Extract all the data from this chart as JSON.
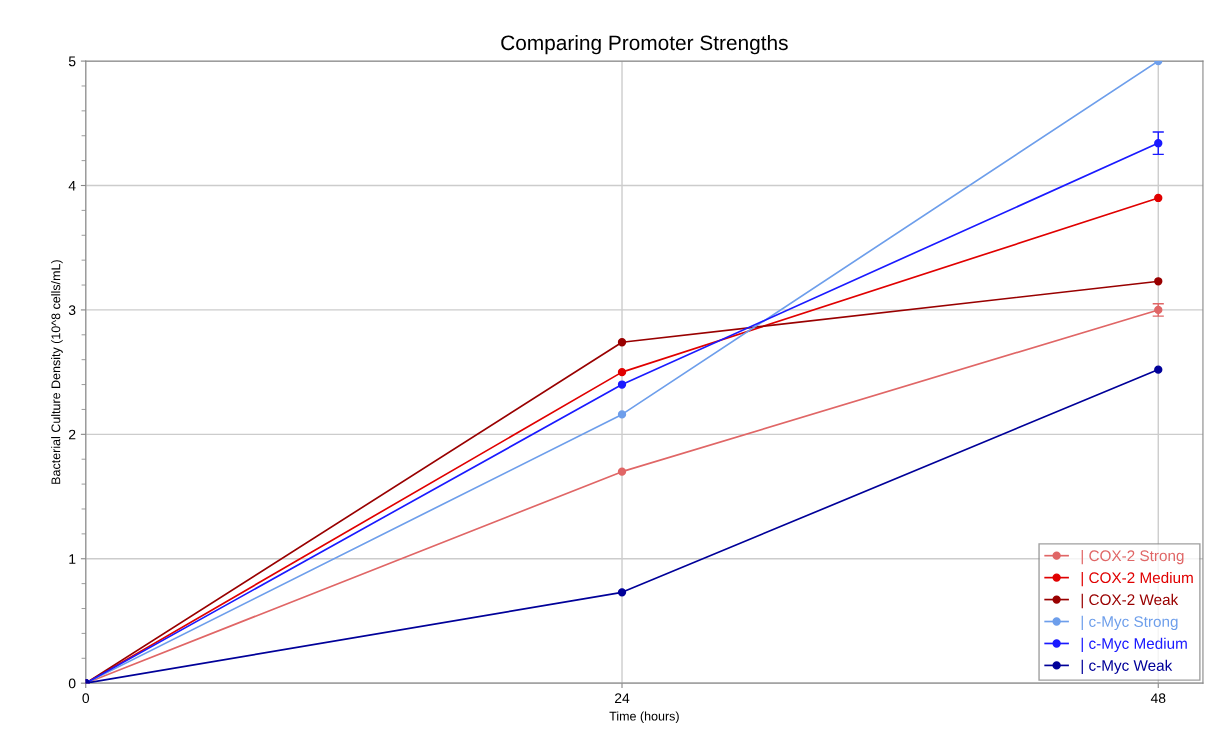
{
  "chart_data": {
    "type": "line",
    "title": "Comparing Promoter Strengths",
    "xlabel": "Time (hours)",
    "ylabel": "Bacterial Culture Density (10^8 cells/mL)",
    "x": [
      0,
      24,
      48
    ],
    "xlim": [
      0,
      50
    ],
    "xticks": [
      0,
      24,
      48
    ],
    "ylim": [
      0,
      5
    ],
    "yticks": [
      0,
      1,
      2,
      3,
      4,
      5
    ],
    "grid": true,
    "legend": "bottom right",
    "marker": "circle",
    "line_style": "solid",
    "series": [
      {
        "name": "| COX-2 Strong",
        "color": "#e06666",
        "values": [
          0,
          1.7,
          3.0
        ],
        "errors": [
          null,
          null,
          0.05
        ]
      },
      {
        "name": "| COX-2 Medium",
        "color": "#e00000",
        "values": [
          0,
          2.5,
          3.9
        ]
      },
      {
        "name": "| COX-2 Weak",
        "color": "#990000",
        "values": [
          0,
          2.74,
          3.23
        ]
      },
      {
        "name": "| c-Myc Strong",
        "color": "#6d9eeb",
        "values": [
          0,
          2.16,
          5.0
        ]
      },
      {
        "name": "| c-Myc Medium",
        "color": "#1a1aff",
        "values": [
          0,
          2.4,
          4.34
        ],
        "errors": [
          null,
          null,
          0.09
        ]
      },
      {
        "name": "| c-Myc Weak",
        "color": "#000099",
        "values": [
          0,
          0.73,
          2.52
        ]
      }
    ]
  }
}
